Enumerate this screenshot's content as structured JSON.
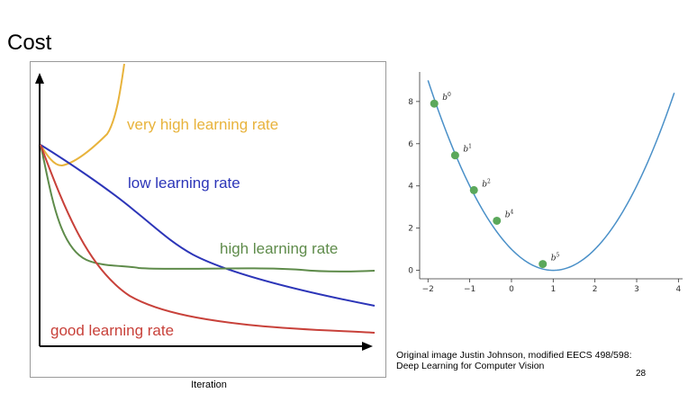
{
  "slide": {
    "title": "Cost",
    "page_number": "28",
    "caption_line1": "Original image  Justin Johnson, modified  EECS 498/598:",
    "caption_line2": "Deep Learning for Computer Vision"
  },
  "loss_diagram": {
    "xlabel": "Iteration",
    "curves": [
      {
        "name": "very high learning rate",
        "label": "very high learning rate",
        "color": "#E8B33C"
      },
      {
        "name": "low learning rate",
        "label": "low learning rate",
        "color": "#2C35B8"
      },
      {
        "name": "high learning rate",
        "label": "high learning rate",
        "color": "#5E8B4A"
      },
      {
        "name": "good learning rate",
        "label": "good learning rate",
        "color": "#C8413A"
      }
    ]
  },
  "chart_data": {
    "type": "line",
    "title": "",
    "xlabel": "",
    "ylabel": "",
    "xlim": [
      -2.2,
      4.1
    ],
    "ylim": [
      -0.4,
      9.4
    ],
    "xticks": [
      -2,
      -1,
      0,
      1,
      2,
      3,
      4
    ],
    "yticks": [
      0,
      2,
      4,
      6,
      8
    ],
    "grid": false,
    "curve_color": "#4A90C8",
    "point_color": "#5BA85B",
    "series": [
      {
        "type": "line",
        "function": "(x-1)^2",
        "x_range": [
          -2.0,
          3.9
        ]
      },
      {
        "type": "scatter",
        "points": [
          {
            "label": "b",
            "sup": "0",
            "x": -1.85,
            "y": 7.9
          },
          {
            "label": "b",
            "sup": "1",
            "x": -1.35,
            "y": 5.45
          },
          {
            "label": "b",
            "sup": "2",
            "x": -0.9,
            "y": 3.8
          },
          {
            "label": "b",
            "sup": "4",
            "x": -0.35,
            "y": 2.35
          },
          {
            "label": "b",
            "sup": "5",
            "x": 0.75,
            "y": 0.3
          }
        ]
      }
    ]
  }
}
